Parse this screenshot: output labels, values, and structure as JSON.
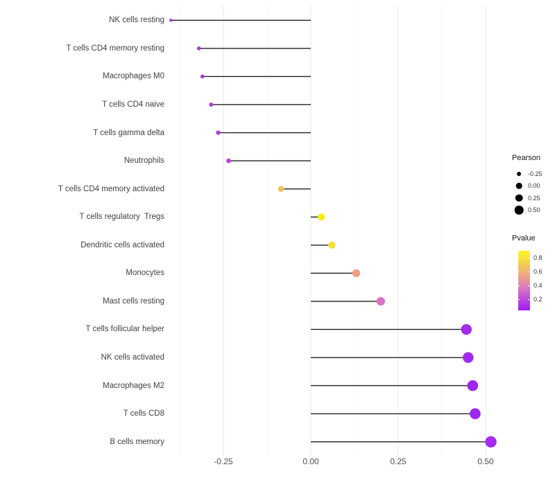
{
  "chart_data": {
    "type": "scatter",
    "variant": "lollipop",
    "title": "",
    "xlabel": "",
    "ylabel": "",
    "grid": "vertical-only",
    "xlim": [
      -0.45,
      0.56
    ],
    "x_axis": {
      "major_ticks": [
        {
          "value": -0.25,
          "label": "-0.25"
        },
        {
          "value": 0.0,
          "label": "0.00"
        },
        {
          "value": 0.25,
          "label": "0.25"
        },
        {
          "value": 0.5,
          "label": "0.50"
        }
      ],
      "minor_ticks": [
        -0.375,
        -0.125,
        0.125,
        0.375
      ]
    },
    "rows": [
      {
        "label": "NK cells resting",
        "pearson": -0.4,
        "pvalue": 0.17,
        "color": "#A538DF"
      },
      {
        "label": "T cells CD4 memory resting",
        "pearson": -0.32,
        "pvalue": 0.2,
        "color": "#AB3ADA"
      },
      {
        "label": "Macrophages M0",
        "pearson": -0.31,
        "pvalue": 0.2,
        "color": "#AB3ADA"
      },
      {
        "label": "T cells CD4 naive",
        "pearson": -0.285,
        "pvalue": 0.22,
        "color": "#B13CD9"
      },
      {
        "label": "T cells gamma delta",
        "pearson": -0.265,
        "pvalue": 0.24,
        "color": "#B33DD6"
      },
      {
        "label": "Neutrophils",
        "pearson": -0.235,
        "pvalue": 0.27,
        "color": "#BA44D2"
      },
      {
        "label": "T cells CD4 memory activated",
        "pearson": -0.085,
        "pvalue": 0.67,
        "color": "#EDC25F"
      },
      {
        "label": "T cells regulatory  Tregs",
        "pearson": 0.03,
        "pvalue": 0.88,
        "color": "#FAEC07"
      },
      {
        "label": "Dendritic cells activated",
        "pearson": 0.06,
        "pvalue": 0.78,
        "color": "#F5DF3A"
      },
      {
        "label": "Monocytes",
        "pearson": 0.13,
        "pvalue": 0.55,
        "color": "#EFA183"
      },
      {
        "label": "Mast cells resting",
        "pearson": 0.2,
        "pvalue": 0.4,
        "color": "#D973C3"
      },
      {
        "label": "T cells follicular helper",
        "pearson": 0.445,
        "pvalue": 0.1,
        "color": "#A12CEE"
      },
      {
        "label": "NK cells activated",
        "pearson": 0.45,
        "pvalue": 0.1,
        "color": "#A02BEF"
      },
      {
        "label": "Macrophages M2",
        "pearson": 0.463,
        "pvalue": 0.08,
        "color": "#9F28F0"
      },
      {
        "label": "T cells CD8",
        "pearson": 0.47,
        "pvalue": 0.07,
        "color": "#9D27F1"
      },
      {
        "label": "B cells memory",
        "pearson": 0.515,
        "pvalue": 0.06,
        "color": "#A32CF0"
      }
    ],
    "stem_color": "#1f1f1f",
    "gridline_major_color": "#E7E7E7",
    "gridline_minor_color": "#F3F3F3",
    "legend": {
      "pearson": {
        "title": "Pearson",
        "entries": [
          {
            "label": "-0.25",
            "r": 3.0
          },
          {
            "label": "0.00",
            "r": 4.3
          },
          {
            "label": "0.25",
            "r": 5.3
          },
          {
            "label": "0.50",
            "r": 6.3
          }
        ]
      },
      "pvalue": {
        "title": "Pvalue",
        "ticks": [
          {
            "value": 0.8,
            "label": "0.8"
          },
          {
            "value": 0.6,
            "label": "0.6"
          },
          {
            "value": 0.4,
            "label": "0.4"
          },
          {
            "value": 0.2,
            "label": "0.2"
          }
        ],
        "gradient_stops": [
          {
            "pos": 0,
            "color": "#A01BF2"
          },
          {
            "pos": 20,
            "color": "#BC4CDC"
          },
          {
            "pos": 40,
            "color": "#DC7FBE"
          },
          {
            "pos": 55,
            "color": "#EC9F8D"
          },
          {
            "pos": 70,
            "color": "#F0BC67"
          },
          {
            "pos": 85,
            "color": "#F7DC3F"
          },
          {
            "pos": 100,
            "color": "#FCF428"
          }
        ]
      }
    }
  }
}
